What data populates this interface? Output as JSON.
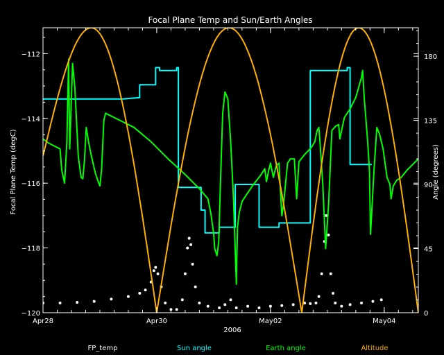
{
  "chart_data": {
    "type": "line",
    "title": "Focal Plane Temp and Sun/Earth Angles",
    "xlabel": "2006",
    "ylabel_left": "Focal Plane Temp (degC)",
    "ylabel_right": "Angle (degrees)",
    "x_range_days": [
      0,
      6.6
    ],
    "x_ticks": [
      {
        "x": 0,
        "label": "Apr28"
      },
      {
        "x": 2,
        "label": "Apr30"
      },
      {
        "x": 4,
        "label": "May02"
      },
      {
        "x": 6,
        "label": "May04"
      }
    ],
    "left_axis": {
      "min": -120,
      "max": -111.2,
      "ticks": [
        -120,
        -118,
        -116,
        -114,
        -112
      ]
    },
    "right_axis": {
      "min": 0,
      "max": 200,
      "ticks": [
        0,
        45,
        90,
        135,
        180
      ]
    },
    "legend_placement": "bottom",
    "series": [
      {
        "name": "FP_temp",
        "axis": "left",
        "color": "#ffffff",
        "style": "markers",
        "points": [
          [
            0.0,
            -119.7
          ],
          [
            0.3,
            -119.7
          ],
          [
            0.6,
            -119.68
          ],
          [
            0.9,
            -119.65
          ],
          [
            1.2,
            -119.58
          ],
          [
            1.5,
            -119.5
          ],
          [
            1.7,
            -119.4
          ],
          [
            1.8,
            -119.3
          ],
          [
            1.9,
            -119.05
          ],
          [
            1.95,
            -118.7
          ],
          [
            1.98,
            -118.6
          ],
          [
            2.02,
            -118.8
          ],
          [
            2.08,
            -119.2
          ],
          [
            2.15,
            -119.7
          ],
          [
            2.25,
            -119.9
          ],
          [
            2.35,
            -119.9
          ],
          [
            2.45,
            -119.6
          ],
          [
            2.5,
            -118.8
          ],
          [
            2.54,
            -118.0
          ],
          [
            2.57,
            -117.7
          ],
          [
            2.6,
            -117.9
          ],
          [
            2.63,
            -118.5
          ],
          [
            2.68,
            -119.2
          ],
          [
            2.75,
            -119.7
          ],
          [
            2.9,
            -119.8
          ],
          [
            3.1,
            -119.85
          ],
          [
            3.2,
            -119.75
          ],
          [
            3.3,
            -119.6
          ],
          [
            3.4,
            -119.85
          ],
          [
            3.6,
            -119.8
          ],
          [
            3.8,
            -119.85
          ],
          [
            4.0,
            -119.8
          ],
          [
            4.2,
            -119.78
          ],
          [
            4.4,
            -119.75
          ],
          [
            4.6,
            -119.7
          ],
          [
            4.7,
            -119.72
          ],
          [
            4.8,
            -119.7
          ],
          [
            4.85,
            -119.5
          ],
          [
            4.9,
            -118.8
          ],
          [
            4.95,
            -117.8
          ],
          [
            4.98,
            -117.0
          ],
          [
            5.02,
            -117.6
          ],
          [
            5.06,
            -118.8
          ],
          [
            5.1,
            -119.4
          ],
          [
            5.14,
            -119.7
          ],
          [
            5.25,
            -119.8
          ],
          [
            5.4,
            -119.75
          ],
          [
            5.6,
            -119.7
          ],
          [
            5.8,
            -119.65
          ],
          [
            5.95,
            -119.6
          ]
        ]
      },
      {
        "name": "Sun angle",
        "axis": "right",
        "color": "#00ffff",
        "style": "line",
        "points": [
          [
            0.0,
            150
          ],
          [
            1.4,
            150
          ],
          [
            1.7,
            151
          ],
          [
            1.7,
            160
          ],
          [
            1.98,
            160
          ],
          [
            1.98,
            172
          ],
          [
            2.05,
            172
          ],
          [
            2.05,
            170
          ],
          [
            2.35,
            170
          ],
          [
            2.35,
            172
          ],
          [
            2.38,
            172
          ],
          [
            2.38,
            88
          ],
          [
            2.78,
            88
          ],
          [
            2.78,
            72
          ],
          [
            2.85,
            72
          ],
          [
            2.85,
            56
          ],
          [
            3.1,
            56
          ],
          [
            3.1,
            60
          ],
          [
            3.38,
            60
          ],
          [
            3.38,
            90
          ],
          [
            3.8,
            90
          ],
          [
            3.8,
            60
          ],
          [
            4.15,
            60
          ],
          [
            4.15,
            63
          ],
          [
            4.7,
            63
          ],
          [
            4.7,
            170
          ],
          [
            5.35,
            170
          ],
          [
            5.35,
            172
          ],
          [
            5.4,
            172
          ],
          [
            5.4,
            104
          ],
          [
            5.78,
            104
          ]
        ]
      },
      {
        "name": "Earth angle",
        "axis": "right",
        "color": "#00ff00",
        "style": "line",
        "points": [
          [
            0.0,
            122
          ],
          [
            0.1,
            119
          ],
          [
            0.2,
            117
          ],
          [
            0.3,
            115
          ],
          [
            0.33,
            100
          ],
          [
            0.38,
            91
          ],
          [
            0.42,
            120
          ],
          [
            0.45,
            178
          ],
          [
            0.47,
            115
          ],
          [
            0.52,
            175
          ],
          [
            0.56,
            158
          ],
          [
            0.62,
            110
          ],
          [
            0.67,
            95
          ],
          [
            0.7,
            94
          ],
          [
            0.73,
            107
          ],
          [
            0.76,
            130
          ],
          [
            0.8,
            120
          ],
          [
            0.85,
            110
          ],
          [
            0.92,
            98
          ],
          [
            0.98,
            91
          ],
          [
            1.0,
            89
          ],
          [
            1.03,
            100
          ],
          [
            1.07,
            135
          ],
          [
            1.1,
            140
          ],
          [
            1.3,
            136
          ],
          [
            1.6,
            130
          ],
          [
            1.9,
            120
          ],
          [
            2.2,
            108
          ],
          [
            2.5,
            97
          ],
          [
            2.75,
            87
          ],
          [
            2.9,
            80
          ],
          [
            2.95,
            70
          ],
          [
            3.0,
            56
          ],
          [
            3.02,
            45
          ],
          [
            3.06,
            40
          ],
          [
            3.09,
            50
          ],
          [
            3.12,
            90
          ],
          [
            3.16,
            140
          ],
          [
            3.2,
            155
          ],
          [
            3.25,
            150
          ],
          [
            3.3,
            120
          ],
          [
            3.35,
            80
          ],
          [
            3.4,
            20
          ],
          [
            3.42,
            60
          ],
          [
            3.45,
            70
          ],
          [
            3.5,
            78
          ],
          [
            3.58,
            83
          ],
          [
            3.7,
            90
          ],
          [
            3.82,
            96
          ],
          [
            3.9,
            101
          ],
          [
            3.93,
            92
          ],
          [
            3.97,
            100
          ],
          [
            4.0,
            105
          ],
          [
            4.05,
            95
          ],
          [
            4.1,
            103
          ],
          [
            4.15,
            105
          ],
          [
            4.17,
            90
          ],
          [
            4.2,
            68
          ],
          [
            4.23,
            76
          ],
          [
            4.3,
            105
          ],
          [
            4.35,
            108
          ],
          [
            4.42,
            108
          ],
          [
            4.46,
            80
          ],
          [
            4.5,
            106
          ],
          [
            4.6,
            111
          ],
          [
            4.72,
            116
          ],
          [
            4.78,
            120
          ],
          [
            4.82,
            128
          ],
          [
            4.85,
            130
          ],
          [
            4.87,
            120
          ],
          [
            4.92,
            90
          ],
          [
            4.97,
            45
          ],
          [
            5.02,
            75
          ],
          [
            5.08,
            128
          ],
          [
            5.15,
            131
          ],
          [
            5.2,
            132
          ],
          [
            5.22,
            122
          ],
          [
            5.3,
            137
          ],
          [
            5.4,
            143
          ],
          [
            5.5,
            151
          ],
          [
            5.6,
            165
          ],
          [
            5.62,
            170
          ],
          [
            5.65,
            150
          ],
          [
            5.68,
            135
          ],
          [
            5.71,
            120
          ],
          [
            5.74,
            100
          ],
          [
            5.76,
            55
          ],
          [
            5.78,
            70
          ],
          [
            5.82,
            100
          ],
          [
            5.87,
            130
          ],
          [
            5.92,
            125
          ],
          [
            5.98,
            115
          ],
          [
            6.05,
            95
          ],
          [
            6.1,
            90
          ],
          [
            6.12,
            80
          ],
          [
            6.16,
            89
          ],
          [
            6.22,
            93
          ],
          [
            6.3,
            95
          ],
          [
            6.4,
            100
          ],
          [
            6.5,
            104
          ],
          [
            6.6,
            108
          ]
        ]
      },
      {
        "name": "Altitude",
        "axis": "right",
        "color": "#ffb000",
        "style": "line",
        "cycles": [
          {
            "start": 0.0,
            "peak": 0.85,
            "end": 2.0
          },
          {
            "start": 2.0,
            "peak": 3.27,
            "end": 4.55
          },
          {
            "start": 4.55,
            "peak": 5.55,
            "end": 6.6
          }
        ],
        "min": 0,
        "max": 200,
        "initial": 110
      }
    ]
  }
}
